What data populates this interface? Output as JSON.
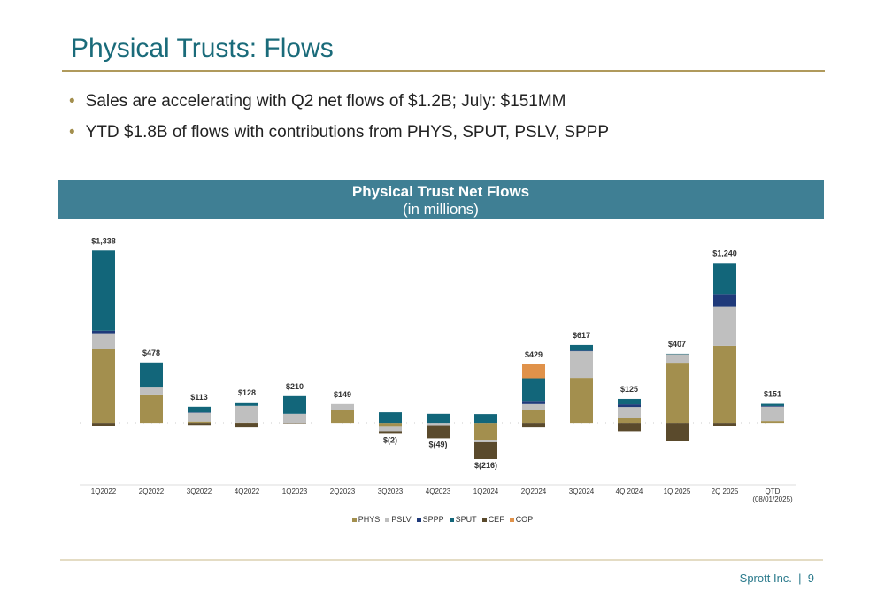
{
  "header": {
    "title": "Physical Trusts: Flows"
  },
  "bullets": [
    "Sales are accelerating with Q2 net flows of $1.2B; July: $151MM",
    "YTD $1.8B of flows with contributions from PHYS, SPUT, PSLV, SPPP"
  ],
  "chart_data": {
    "type": "stacked_bar",
    "title": "Physical Trust Net Flows",
    "subtitle": "(in millions)",
    "categories": [
      "1Q2022",
      "2Q2022",
      "3Q2022",
      "4Q2022",
      "1Q2023",
      "2Q2023",
      "3Q2023",
      "4Q2023",
      "1Q2024",
      "2Q2024",
      "3Q2024",
      "4Q 2024",
      "1Q 2025",
      "2Q 2025",
      "QTD (08/01/2025)"
    ],
    "series": [
      {
        "name": "PHYS",
        "color": "#a38f4e",
        "values": [
          585,
          225,
          10,
          2,
          0,
          105,
          -30,
          0,
          -133,
          99,
          357,
          42,
          476,
          610,
          14
        ]
      },
      {
        "name": "PSLV",
        "color": "#bfbfbf",
        "values": [
          125,
          55,
          70,
          133,
          72,
          44,
          -35,
          -17,
          -20,
          50,
          210,
          84,
          70,
          310,
          115
        ]
      },
      {
        "name": "SPPP",
        "color": "#1f3a7a",
        "values": [
          20,
          0,
          3,
          0,
          0,
          0,
          0,
          0,
          0,
          25,
          5,
          21,
          0,
          100,
          5
        ]
      },
      {
        "name": "SPUT",
        "color": "#12667a",
        "values": [
          633,
          198,
          45,
          28,
          140,
          0,
          84,
          72,
          70,
          180,
          45,
          43,
          1,
          245,
          17
        ]
      },
      {
        "name": "CEF",
        "color": "#5a4a2c",
        "values": [
          -25,
          0,
          -15,
          -35,
          -2,
          0,
          -21,
          -104,
          -133,
          -35,
          0,
          -65,
          -140,
          -25,
          0
        ]
      },
      {
        "name": "COP",
        "color": "#e0924a",
        "values": [
          0,
          0,
          0,
          0,
          0,
          0,
          0,
          0,
          0,
          110,
          0,
          0,
          0,
          0,
          0
        ]
      }
    ],
    "totals": [
      1338,
      478,
      113,
      128,
      210,
      149,
      -2,
      -49,
      -216,
      429,
      617,
      125,
      407,
      1240,
      151
    ],
    "value_labels": [
      "$1,338",
      "$478",
      "$113",
      "$128",
      "$210",
      "$149",
      "$(2)",
      "$(49)",
      "$(216)",
      "$429",
      "$617",
      "$125",
      "$407",
      "$1,240",
      "$151"
    ],
    "ylim": [
      -300,
      1400
    ],
    "legend": "bottom"
  },
  "footer": {
    "company": "Sprott Inc.",
    "separator": "|",
    "page": "9"
  }
}
